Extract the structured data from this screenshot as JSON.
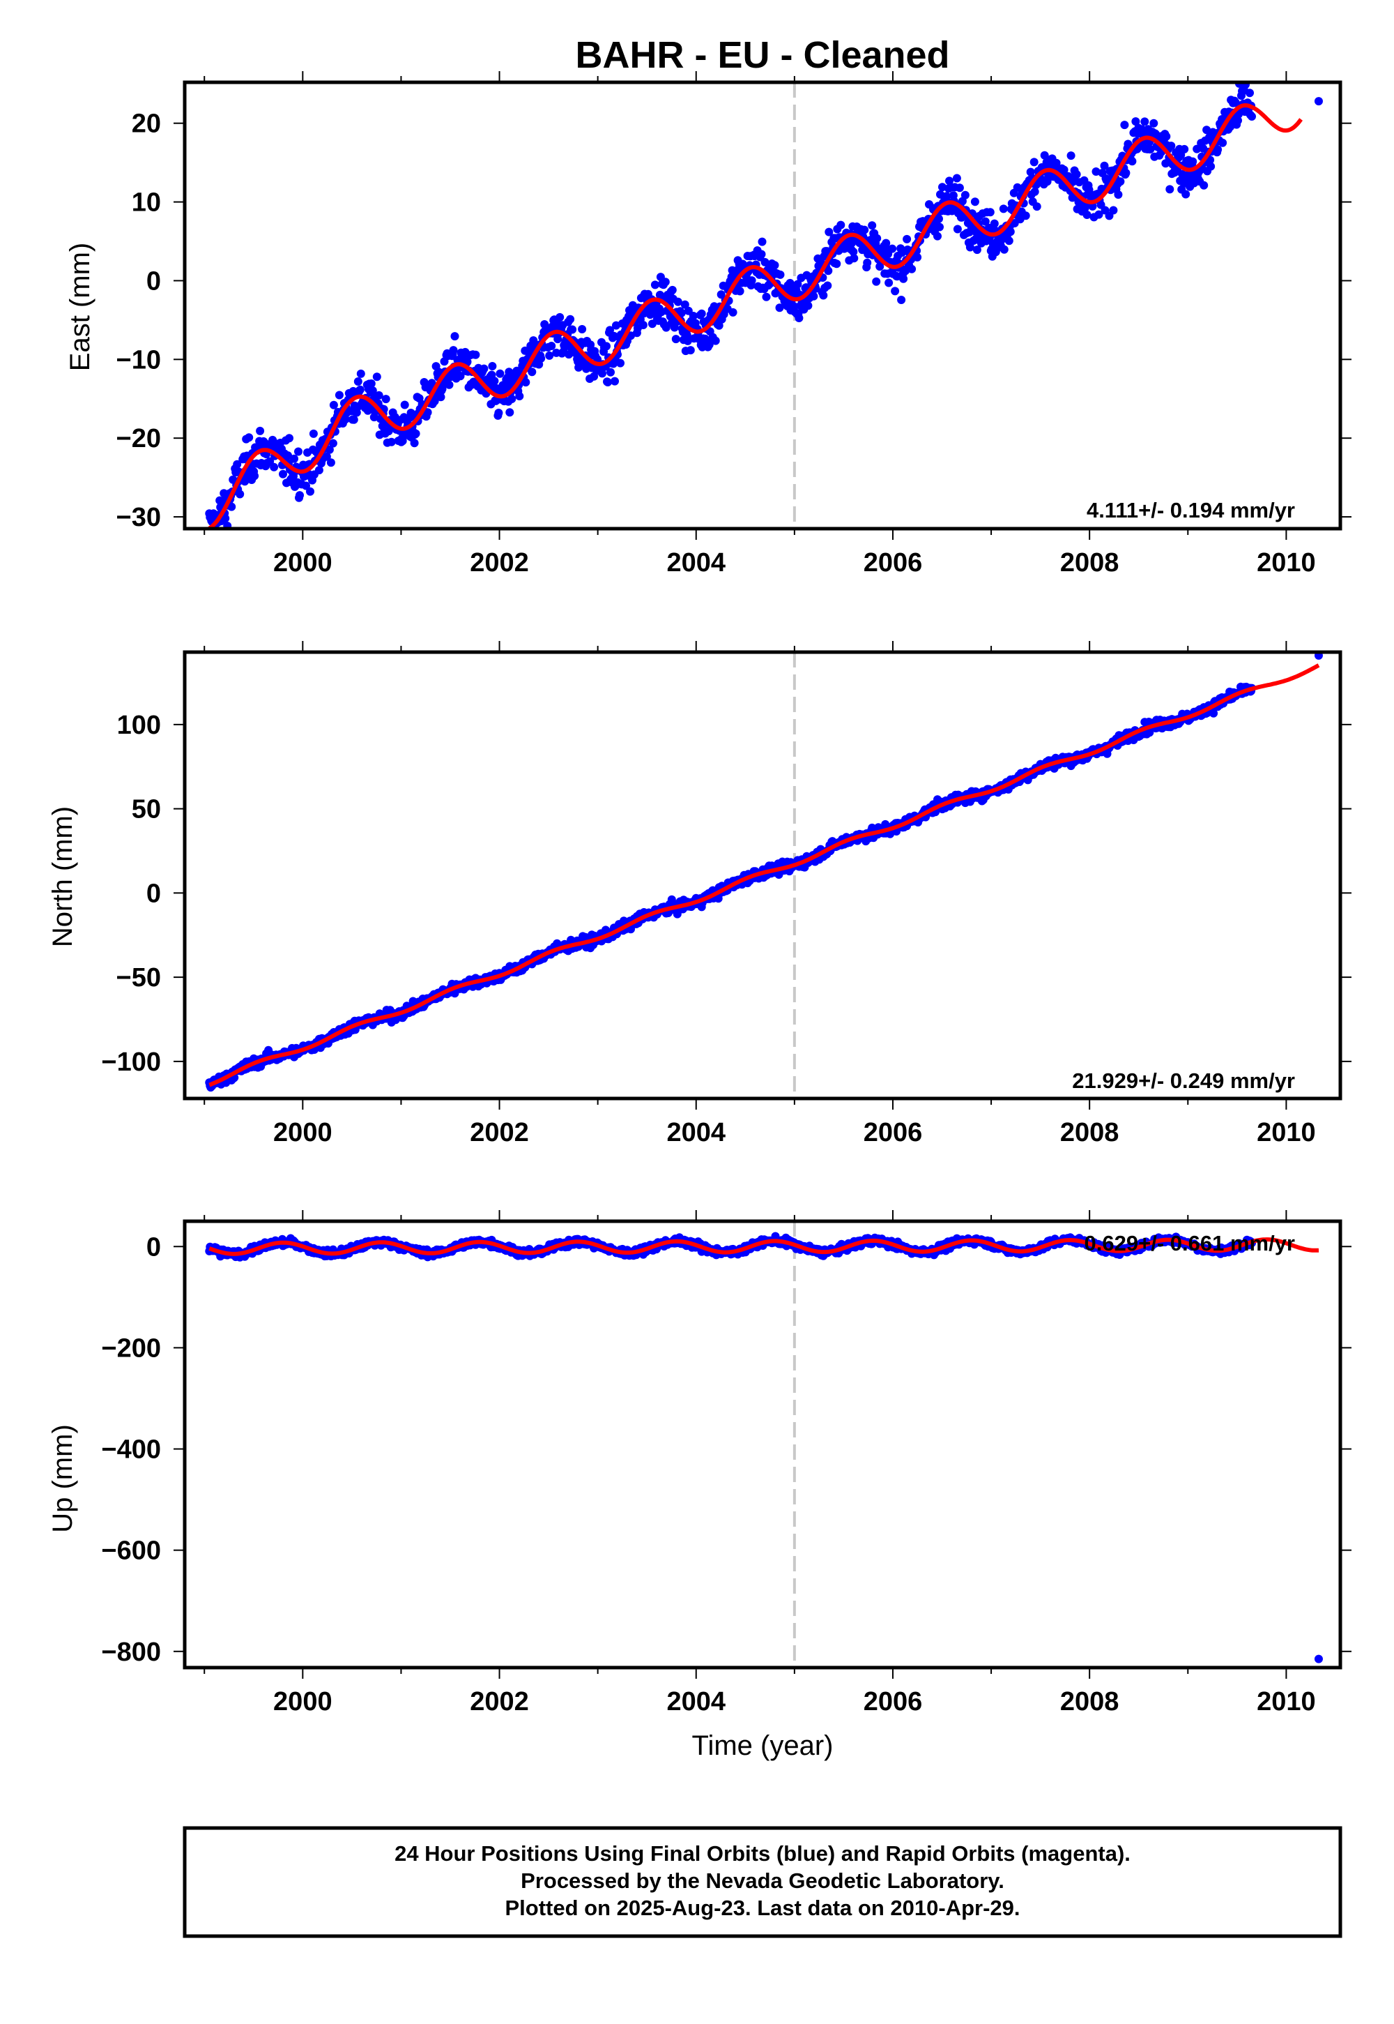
{
  "title": "BAHR  - EU - Cleaned",
  "xlabel": "Time (year)",
  "footer": {
    "line1": "24 Hour Positions Using Final Orbits (blue) and Rapid Orbits (magenta).",
    "line2": "Processed by the Nevada Geodetic Laboratory.",
    "line3": "Plotted on 2025-Aug-23. Last data on 2010-Apr-29."
  },
  "colors": {
    "data": "#0000ff",
    "model": "#ff0000",
    "break_line": "#c8c8c8",
    "frame": "#000000"
  },
  "chart_data": [
    {
      "type": "scatter",
      "panel": "east",
      "ylabel": "East (mm)",
      "rate_label": "4.111+/- 0.194 mm/yr",
      "xlim": [
        1998.8,
        2010.55
      ],
      "ylim": [
        -31.5,
        25.2
      ],
      "xticks": [
        2000,
        2002,
        2004,
        2006,
        2008,
        2010
      ],
      "yticks": [
        -30,
        -20,
        -10,
        0,
        10,
        20
      ],
      "equipment_change": 2005.0,
      "data_range": [
        1999.05,
        2009.65
      ],
      "trend": {
        "rate": 4.111,
        "value_at_2005": 0.5
      },
      "seasonal": {
        "amplitude": 3.0,
        "phase_year": 2000.3
      },
      "scatter": 2.0,
      "early_offset": {
        "until": 2000.4,
        "offset": -4.5
      },
      "outliers": [
        {
          "x": 2010.33,
          "y": 22.8
        }
      ],
      "model_end": 2010.15,
      "grid": false
    },
    {
      "type": "scatter",
      "panel": "north",
      "ylabel": "North (mm)",
      "rate_label": "21.929+/- 0.249 mm/yr",
      "xlim": [
        1998.8,
        2010.55
      ],
      "ylim": [
        -122,
        143
      ],
      "xticks": [
        2000,
        2002,
        2004,
        2006,
        2008,
        2010
      ],
      "yticks": [
        -100,
        -50,
        0,
        50,
        100
      ],
      "equipment_change": 2005.0,
      "data_range": [
        1999.05,
        2009.65
      ],
      "trend": {
        "rate": 21.929,
        "value_at_2005": 18.0
      },
      "seasonal": {
        "amplitude": 1.5,
        "phase_year": 2000.3
      },
      "scatter": 2.2,
      "outliers": [
        {
          "x": 2010.33,
          "y": 141
        }
      ],
      "model_end": 2010.33,
      "grid": false
    },
    {
      "type": "scatter",
      "panel": "up",
      "ylabel": "Up (mm)",
      "rate_label": "0.629+/- 0.661 mm/yr",
      "xlim": [
        1998.8,
        2010.55
      ],
      "ylim": [
        -832,
        50
      ],
      "xticks": [
        2000,
        2002,
        2004,
        2006,
        2008,
        2010
      ],
      "yticks": [
        -800,
        -600,
        -400,
        -200,
        0
      ],
      "equipment_change": 2005.0,
      "data_range": [
        1999.05,
        2009.65
      ],
      "trend": {
        "rate": 0.629,
        "value_at_2005": 0.0
      },
      "seasonal": {
        "amplitude": 11.0,
        "phase_year": 2000.55
      },
      "scatter": 5.0,
      "outliers": [
        {
          "x": 2010.33,
          "y": -815
        }
      ],
      "model_end": 2010.33,
      "grid": false
    }
  ]
}
